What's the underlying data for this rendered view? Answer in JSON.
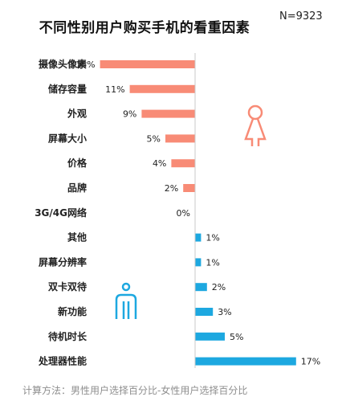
{
  "header": {
    "title": "不同性别用户购买手机的看重因素",
    "sample": "N=9323"
  },
  "footnote": "计算方法：男性用户选择百分比-女性用户选择百分比",
  "colors": {
    "female": "#F88B76",
    "male": "#1DA8E0",
    "axis": "#c8c8c8",
    "text": "#222222"
  },
  "icons": {
    "female": "female-symbol-icon",
    "male": "male-symbol-icon"
  },
  "chart_data": {
    "type": "bar",
    "orientation": "horizontal",
    "title": "不同性别用户购买手机的看重因素",
    "categories": [
      "摄像头像素",
      "储存容量",
      "外观",
      "屏幕大小",
      "价格",
      "品牌",
      "3G/4G网络",
      "其他",
      "屏幕分辨率",
      "双卡双待",
      "新功能",
      "待机时长",
      "处理器性能"
    ],
    "values": [
      -16,
      -11,
      -9,
      -5,
      -4,
      -2,
      0,
      1,
      1,
      2,
      3,
      5,
      17
    ],
    "labels": [
      "16%",
      "11%",
      "9%",
      "5%",
      "4%",
      "2%",
      "0%",
      "1%",
      "1%",
      "2%",
      "3%",
      "5%",
      "17%"
    ],
    "unit": "%",
    "xlim": [
      -17,
      17
    ],
    "grid": false
  }
}
